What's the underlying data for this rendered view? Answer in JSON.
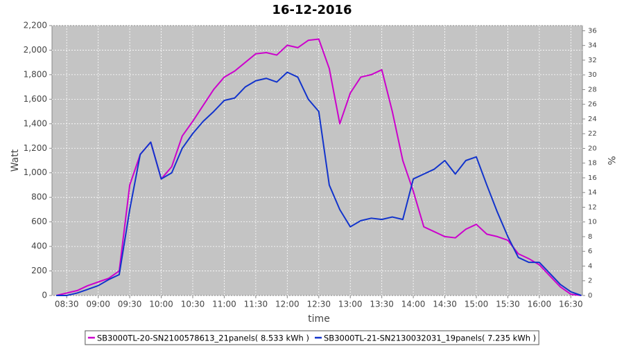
{
  "chart_data": {
    "type": "line",
    "title": "16-12-2016",
    "x_label": "time",
    "y_label": "Watt",
    "y2_label": "%",
    "x": [
      "08:20",
      "08:30",
      "08:40",
      "08:50",
      "09:00",
      "09:10",
      "09:20",
      "09:30",
      "09:40",
      "09:50",
      "10:00",
      "10:10",
      "10:20",
      "10:30",
      "10:40",
      "10:50",
      "11:00",
      "11:10",
      "11:20",
      "11:30",
      "11:40",
      "11:50",
      "12:00",
      "12:10",
      "12:20",
      "12:30",
      "12:40",
      "12:50",
      "13:00",
      "13:10",
      "13:20",
      "13:30",
      "13:40",
      "13:50",
      "14:00",
      "14:10",
      "14:20",
      "14:30",
      "14:40",
      "14:50",
      "15:00",
      "15:10",
      "15:20",
      "15:30",
      "15:40",
      "15:50",
      "16:00",
      "16:10",
      "16:20",
      "16:30",
      "16:40"
    ],
    "series": [
      {
        "name": "SB3000TL-20-SN2100578613_21panels( 8.533 kWh )",
        "color": "#cc00cc",
        "values": [
          0,
          20,
          40,
          80,
          110,
          140,
          200,
          900,
          1150,
          1250,
          950,
          1050,
          1300,
          1420,
          1550,
          1680,
          1780,
          1830,
          1900,
          1970,
          1980,
          1960,
          2040,
          2020,
          2080,
          2090,
          1850,
          1400,
          1650,
          1780,
          1800,
          1840,
          1500,
          1100,
          850,
          560,
          520,
          480,
          470,
          540,
          580,
          500,
          480,
          450,
          340,
          300,
          250,
          160,
          70,
          10,
          0
        ]
      },
      {
        "name": "SB3000TL-21-SN2130032031_19panels( 7.235 kWh )",
        "color": "#1133cc",
        "values": [
          0,
          0,
          20,
          50,
          80,
          130,
          170,
          700,
          1150,
          1250,
          950,
          1000,
          1200,
          1320,
          1420,
          1500,
          1590,
          1610,
          1700,
          1750,
          1770,
          1740,
          1820,
          1780,
          1600,
          1500,
          900,
          700,
          560,
          610,
          630,
          620,
          640,
          620,
          950,
          990,
          1030,
          1100,
          990,
          1100,
          1130,
          900,
          680,
          480,
          310,
          270,
          270,
          180,
          90,
          30,
          0
        ]
      }
    ],
    "xlim": [
      "08:16",
      "16:41"
    ],
    "xticks": [
      "08:30",
      "09:00",
      "09:30",
      "10:00",
      "10:30",
      "11:00",
      "11:30",
      "12:00",
      "12:30",
      "13:00",
      "13:30",
      "14:00",
      "14:30",
      "15:00",
      "15:30",
      "16:00",
      "16:30"
    ],
    "ylim": [
      0,
      2200
    ],
    "yticks": [
      0,
      200,
      400,
      600,
      800,
      {
        "value": 1000,
        "label": "1,000"
      },
      {
        "value": 1200,
        "label": "1,200"
      },
      {
        "value": 1400,
        "label": "1,400"
      },
      {
        "value": 1600,
        "label": "1,600"
      },
      {
        "value": 1800,
        "label": "1,800"
      },
      {
        "value": 2000,
        "label": "2,000"
      },
      {
        "value": 2200,
        "label": "2,200"
      }
    ],
    "y2lim": [
      0,
      36.7
    ],
    "y2ticks": [
      0,
      2,
      4,
      6,
      8,
      10,
      12,
      14,
      16,
      18,
      20,
      22,
      24,
      26,
      28,
      30,
      32,
      34,
      36
    ],
    "grid": true,
    "legend": "bottom"
  }
}
